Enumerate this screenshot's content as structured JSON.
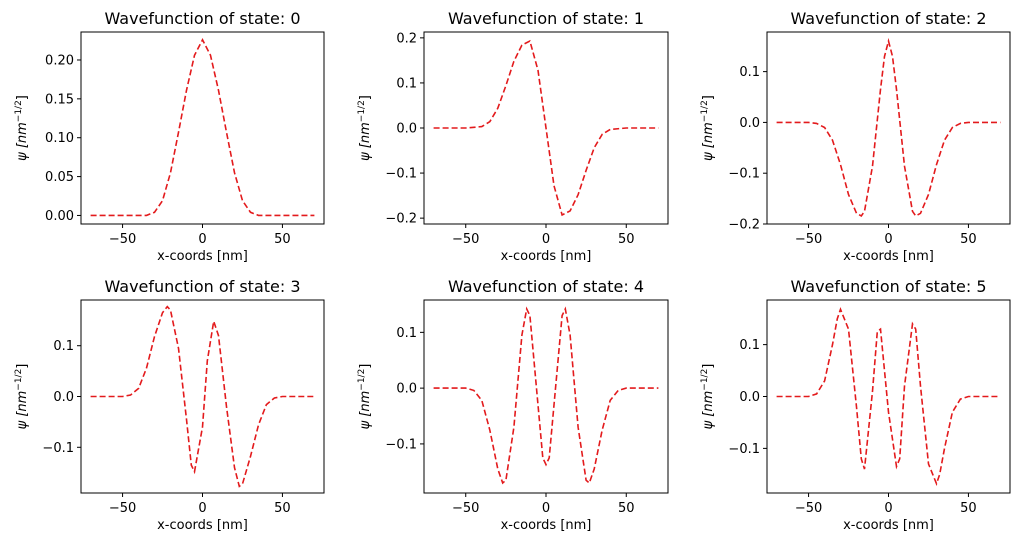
{
  "figure": {
    "background": "#ffffff",
    "line_color": "#e31a1c"
  },
  "chart_data": [
    {
      "type": "line",
      "title": "Wavefunction of state: 0",
      "xlabel": "x-coords [nm]",
      "ylabel": "ψ [nm",
      "ylabel_sup": "−1/2",
      "ylabel_end": "]",
      "xlim": [
        -76,
        76
      ],
      "ylim": [
        -0.011,
        0.236
      ],
      "xticks": [
        -50,
        0,
        50
      ],
      "xtick_labels": [
        "−50",
        "0",
        "50"
      ],
      "yticks": [
        0.0,
        0.05,
        0.1,
        0.15,
        0.2
      ],
      "ytick_labels": [
        "0.00",
        "0.05",
        "0.10",
        "0.15",
        "0.20"
      ],
      "series": [
        {
          "line_style": "dashed",
          "x": [
            -70,
            -60,
            -50,
            -40,
            -35,
            -30,
            -25,
            -20,
            -15,
            -10,
            -5,
            0,
            5,
            10,
            15,
            20,
            25,
            30,
            35,
            40,
            50,
            60,
            70
          ],
          "y": [
            0.0,
            0.0,
            0.0,
            0.0,
            0.0,
            0.004,
            0.019,
            0.055,
            0.107,
            0.161,
            0.206,
            0.226,
            0.206,
            0.161,
            0.107,
            0.055,
            0.019,
            0.004,
            0.0,
            0.0,
            0.0,
            0.0,
            0.0
          ]
        }
      ]
    },
    {
      "type": "line",
      "title": "Wavefunction of state: 1",
      "xlabel": "x-coords [nm]",
      "ylabel": "ψ [nm",
      "ylabel_sup": "−1/2",
      "ylabel_end": "]",
      "xlim": [
        -76,
        76
      ],
      "ylim": [
        -0.213,
        0.213
      ],
      "xticks": [
        -50,
        0,
        50
      ],
      "xtick_labels": [
        "−50",
        "0",
        "50"
      ],
      "yticks": [
        -0.2,
        -0.1,
        0.0,
        0.1,
        0.2
      ],
      "ytick_labels": [
        "−0.2",
        "−0.1",
        "0.0",
        "0.1",
        "0.2"
      ],
      "series": [
        {
          "line_style": "dashed",
          "x": [
            -70,
            -60,
            -50,
            -40,
            -35,
            -30,
            -25,
            -20,
            -15,
            -10,
            -5,
            0,
            5,
            10,
            15,
            20,
            25,
            30,
            35,
            40,
            50,
            60,
            70
          ],
          "y": [
            0.0,
            0.0,
            0.0,
            0.003,
            0.014,
            0.044,
            0.094,
            0.148,
            0.184,
            0.193,
            0.128,
            0.0,
            -0.128,
            -0.193,
            -0.184,
            -0.148,
            -0.094,
            -0.044,
            -0.014,
            -0.003,
            0.0,
            0.0,
            0.0
          ]
        }
      ]
    },
    {
      "type": "line",
      "title": "Wavefunction of state: 2",
      "xlabel": "x-coords [nm]",
      "ylabel": "ψ [nm",
      "ylabel_sup": "−1/2",
      "ylabel_end": "]",
      "xlim": [
        -76,
        76
      ],
      "ylim": [
        -0.2,
        0.178
      ],
      "xticks": [
        -50,
        0,
        50
      ],
      "xtick_labels": [
        "−50",
        "0",
        "50"
      ],
      "yticks": [
        -0.2,
        -0.1,
        0.0,
        0.1
      ],
      "ytick_labels": [
        "−0.2",
        "−0.1",
        "0.0",
        "0.1"
      ],
      "series": [
        {
          "line_style": "dashed",
          "x": [
            -70,
            -60,
            -50,
            -45,
            -40,
            -35,
            -30,
            -25,
            -20,
            -17,
            -15,
            -10,
            -5,
            -2.5,
            0,
            2.5,
            5,
            10,
            15,
            17,
            20,
            25,
            30,
            35,
            40,
            45,
            50,
            60,
            70
          ],
          "y": [
            0.0,
            0.0,
            0.0,
            -0.002,
            -0.01,
            -0.035,
            -0.083,
            -0.142,
            -0.179,
            -0.184,
            -0.175,
            -0.086,
            0.065,
            0.13,
            0.16,
            0.13,
            0.065,
            -0.086,
            -0.175,
            -0.184,
            -0.179,
            -0.142,
            -0.083,
            -0.035,
            -0.01,
            -0.002,
            0.0,
            0.0,
            0.0
          ]
        }
      ]
    },
    {
      "type": "line",
      "title": "Wavefunction of state: 3",
      "xlabel": "x-coords [nm]",
      "ylabel": "ψ [nm",
      "ylabel_sup": "−1/2",
      "ylabel_end": "]",
      "xlim": [
        -76,
        76
      ],
      "ylim": [
        -0.19,
        0.19
      ],
      "xticks": [
        -50,
        0,
        50
      ],
      "xtick_labels": [
        "−50",
        "0",
        "50"
      ],
      "yticks": [
        -0.1,
        0.0,
        0.1
      ],
      "ytick_labels": [
        "−0.1",
        "0.0",
        "0.1"
      ],
      "series": [
        {
          "line_style": "dashed",
          "x": [
            -70,
            -60,
            -50,
            -45,
            -40,
            -35,
            -30,
            -25,
            -22,
            -20,
            -15,
            -10,
            -7,
            -5,
            0,
            3,
            7,
            10,
            15,
            20,
            23,
            25,
            30,
            35,
            40,
            45,
            50,
            60,
            70
          ],
          "y": [
            0.0,
            0.0,
            0.0,
            0.003,
            0.016,
            0.056,
            0.118,
            0.165,
            0.177,
            0.17,
            0.095,
            -0.045,
            -0.135,
            -0.148,
            -0.06,
            0.07,
            0.148,
            0.12,
            -0.02,
            -0.14,
            -0.177,
            -0.172,
            -0.118,
            -0.056,
            -0.016,
            -0.003,
            0.0,
            0.0,
            0.0
          ]
        }
      ]
    },
    {
      "type": "line",
      "title": "Wavefunction of state: 4",
      "xlabel": "x-coords [nm]",
      "ylabel": "ψ [nm",
      "ylabel_sup": "−1/2",
      "ylabel_end": "]",
      "xlim": [
        -76,
        76
      ],
      "ylim": [
        -0.188,
        0.158
      ],
      "xticks": [
        -50,
        0,
        50
      ],
      "xtick_labels": [
        "−50",
        "0",
        "50"
      ],
      "yticks": [
        -0.1,
        0.0,
        0.1
      ],
      "ytick_labels": [
        "−0.1",
        "0.0",
        "0.1"
      ],
      "series": [
        {
          "line_style": "dashed",
          "x": [
            -70,
            -60,
            -50,
            -45,
            -40,
            -35,
            -30,
            -27,
            -25,
            -20,
            -15,
            -12,
            -10,
            -5,
            -2,
            0,
            2,
            5,
            10,
            12,
            15,
            20,
            25,
            27,
            30,
            35,
            40,
            45,
            50,
            60,
            70
          ],
          "y": [
            0.0,
            0.0,
            0.0,
            -0.004,
            -0.022,
            -0.075,
            -0.145,
            -0.17,
            -0.165,
            -0.07,
            0.095,
            0.142,
            0.13,
            -0.03,
            -0.125,
            -0.137,
            -0.125,
            -0.03,
            0.13,
            0.142,
            0.095,
            -0.07,
            -0.165,
            -0.17,
            -0.145,
            -0.075,
            -0.022,
            -0.004,
            0.0,
            0.0,
            0.0
          ]
        }
      ]
    },
    {
      "type": "line",
      "title": "Wavefunction of state: 5",
      "xlabel": "x-coords [nm]",
      "ylabel": "ψ [nm",
      "ylabel_sup": "−1/2",
      "ylabel_end": "]",
      "xlim": [
        -76,
        76
      ],
      "ylim": [
        -0.186,
        0.186
      ],
      "xticks": [
        -50,
        0,
        50
      ],
      "xtick_labels": [
        "−50",
        "0",
        "50"
      ],
      "yticks": [
        -0.1,
        0.0,
        0.1
      ],
      "ytick_labels": [
        "−0.1",
        "0.0",
        "0.1"
      ],
      "series": [
        {
          "line_style": "dashed",
          "x": [
            -70,
            -60,
            -50,
            -45,
            -40,
            -35,
            -32,
            -30,
            -25,
            -20,
            -17,
            -15,
            -10,
            -7,
            -5,
            0,
            5,
            7,
            10,
            15,
            17,
            20,
            25,
            30,
            32,
            35,
            40,
            45,
            50,
            60,
            70
          ],
          "y": [
            0.0,
            0.0,
            0.0,
            0.005,
            0.03,
            0.1,
            0.15,
            0.168,
            0.13,
            -0.02,
            -0.12,
            -0.14,
            0.01,
            0.125,
            0.13,
            -0.03,
            -0.135,
            -0.12,
            0.02,
            0.14,
            0.13,
            0.02,
            -0.13,
            -0.168,
            -0.15,
            -0.1,
            -0.03,
            -0.005,
            0.0,
            0.0,
            0.0
          ]
        }
      ]
    }
  ]
}
